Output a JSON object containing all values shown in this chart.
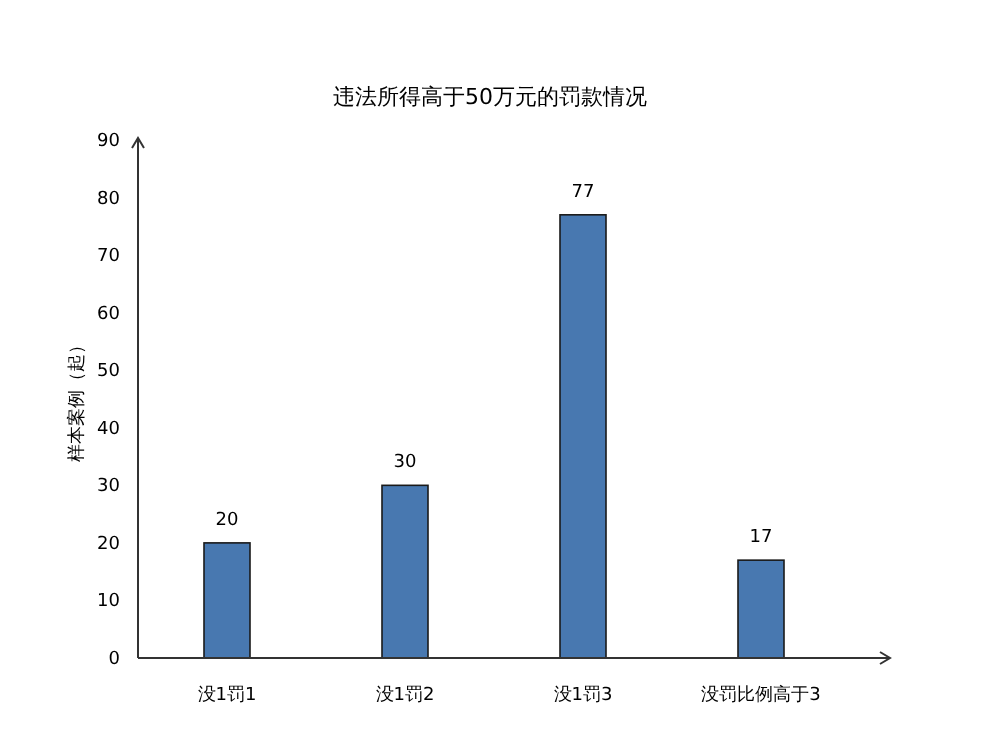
{
  "chart_data": {
    "type": "bar",
    "title": "违法所得高于50万元的罚款情况",
    "ylabel": "样本案例（起）",
    "categories": [
      "没1罚1",
      "没1罚2",
      "没1罚3",
      "没罚比例高于3"
    ],
    "values": [
      20,
      30,
      77,
      17
    ],
    "color": "#4878b0",
    "ylim": [
      0,
      90
    ],
    "yticks": [
      0,
      10,
      20,
      30,
      40,
      50,
      60,
      70,
      80,
      90
    ],
    "data_labels": true,
    "grid": false
  }
}
